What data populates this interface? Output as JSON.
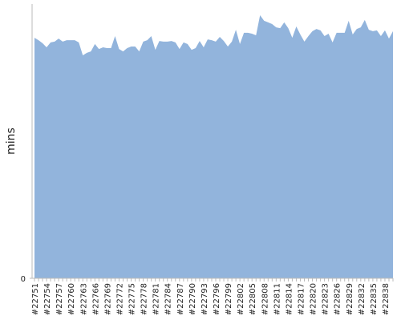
{
  "chart_data": {
    "type": "area",
    "y_label": "mins",
    "color": "#92b4dc",
    "categories": [
      "#22751",
      null,
      null,
      "#22754",
      null,
      null,
      "#22757",
      null,
      null,
      "#22760",
      null,
      null,
      "#22763",
      null,
      null,
      "#22766",
      null,
      null,
      "#22769",
      null,
      null,
      "#22772",
      null,
      null,
      "#22775",
      null,
      null,
      "#22778",
      null,
      null,
      "#22781",
      null,
      null,
      "#22784",
      null,
      null,
      "#22787",
      null,
      null,
      "#22790",
      null,
      null,
      "#22793",
      null,
      null,
      "#22796",
      null,
      null,
      "#22799",
      null,
      null,
      "#22802",
      null,
      null,
      "#22805",
      null,
      null,
      "#22808",
      null,
      null,
      "#22811",
      null,
      null,
      "#22814",
      null,
      null,
      "#22817",
      null,
      null,
      "#22820",
      null,
      null,
      "#22823",
      null,
      null,
      "#22826",
      null,
      null,
      "#22829",
      null,
      null,
      "#22832",
      null,
      null,
      "#22835",
      null,
      null,
      "#22838",
      null,
      null
    ],
    "values": [
      87.7,
      86.8,
      85.7,
      84.2,
      86.0,
      86.3,
      87.4,
      86.3,
      86.8,
      86.8,
      86.8,
      86.0,
      81.3,
      82.2,
      82.7,
      85.4,
      83.6,
      84.2,
      83.9,
      83.9,
      88.3,
      83.6,
      82.7,
      83.9,
      84.5,
      84.5,
      82.7,
      86.3,
      86.8,
      88.3,
      83.3,
      86.5,
      86.3,
      86.3,
      86.5,
      86.0,
      83.6,
      86.0,
      85.4,
      83.3,
      83.9,
      86.5,
      84.2,
      87.1,
      86.8,
      86.3,
      88.0,
      86.5,
      84.5,
      86.3,
      90.6,
      85.4,
      89.5,
      89.5,
      89.2,
      88.6,
      95.9,
      93.9,
      93.3,
      92.7,
      91.5,
      91.2,
      93.3,
      91.2,
      87.7,
      91.8,
      88.9,
      86.3,
      88.3,
      90.1,
      90.9,
      90.4,
      88.3,
      89.2,
      86.0,
      89.5,
      89.5,
      89.5,
      93.9,
      88.9,
      90.9,
      91.5,
      94.2,
      90.6,
      90.1,
      90.4,
      88.3,
      90.4,
      87.4,
      90.1
    ],
    "ylim": [
      0,
      100
    ],
    "yticks": [
      0
    ]
  }
}
